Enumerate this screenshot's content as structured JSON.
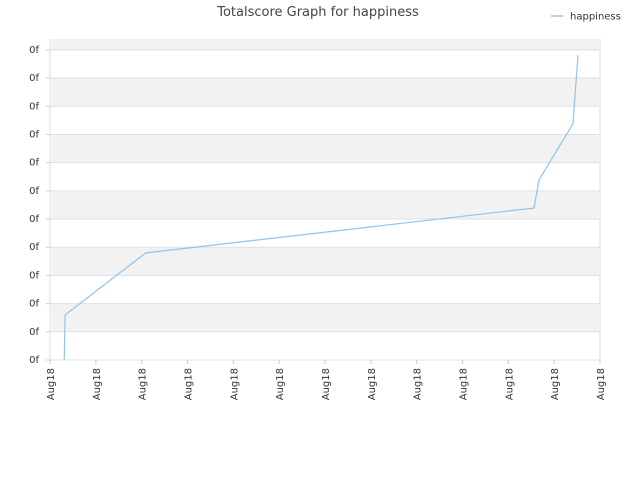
{
  "chart_data": {
    "type": "line",
    "title": "Totalscore Graph for happiness",
    "series": [
      {
        "name": "happiness",
        "color": "#8ec4ee",
        "x": [
          0.31,
          0.33,
          2.09,
          10.56,
          10.67,
          11.41,
          11.52
        ],
        "values": [
          0,
          1.6,
          3.8,
          5.39,
          6.39,
          8.38,
          10.82
        ]
      }
    ],
    "xlim": [
      0,
      12
    ],
    "xticks": [
      {
        "value": 0,
        "label": "Aug18"
      },
      {
        "value": 1,
        "label": "Aug18"
      },
      {
        "value": 2,
        "label": "Aug18"
      },
      {
        "value": 3,
        "label": "Aug18"
      },
      {
        "value": 4,
        "label": "Aug18"
      },
      {
        "value": 5,
        "label": "Aug18"
      },
      {
        "value": 6,
        "label": "Aug18"
      },
      {
        "value": 7,
        "label": "Aug18"
      },
      {
        "value": 8,
        "label": "Aug18"
      },
      {
        "value": 9,
        "label": "Aug18"
      },
      {
        "value": 10,
        "label": "Aug18"
      },
      {
        "value": 11,
        "label": "Aug18"
      },
      {
        "value": 12,
        "label": "Aug18"
      }
    ],
    "ylim": [
      0,
      11.35
    ],
    "yticks": [
      {
        "value": 0,
        "label": "0f"
      },
      {
        "value": 1,
        "label": "0f"
      },
      {
        "value": 2,
        "label": "0f"
      },
      {
        "value": 3,
        "label": "0f"
      },
      {
        "value": 4,
        "label": "0f"
      },
      {
        "value": 5,
        "label": "0f"
      },
      {
        "value": 6,
        "label": "0f"
      },
      {
        "value": 7,
        "label": "0f"
      },
      {
        "value": 8,
        "label": "0f"
      },
      {
        "value": 9,
        "label": "0f"
      },
      {
        "value": 10,
        "label": "0f"
      },
      {
        "value": 11,
        "label": "0f"
      }
    ],
    "legend": "top-right"
  }
}
